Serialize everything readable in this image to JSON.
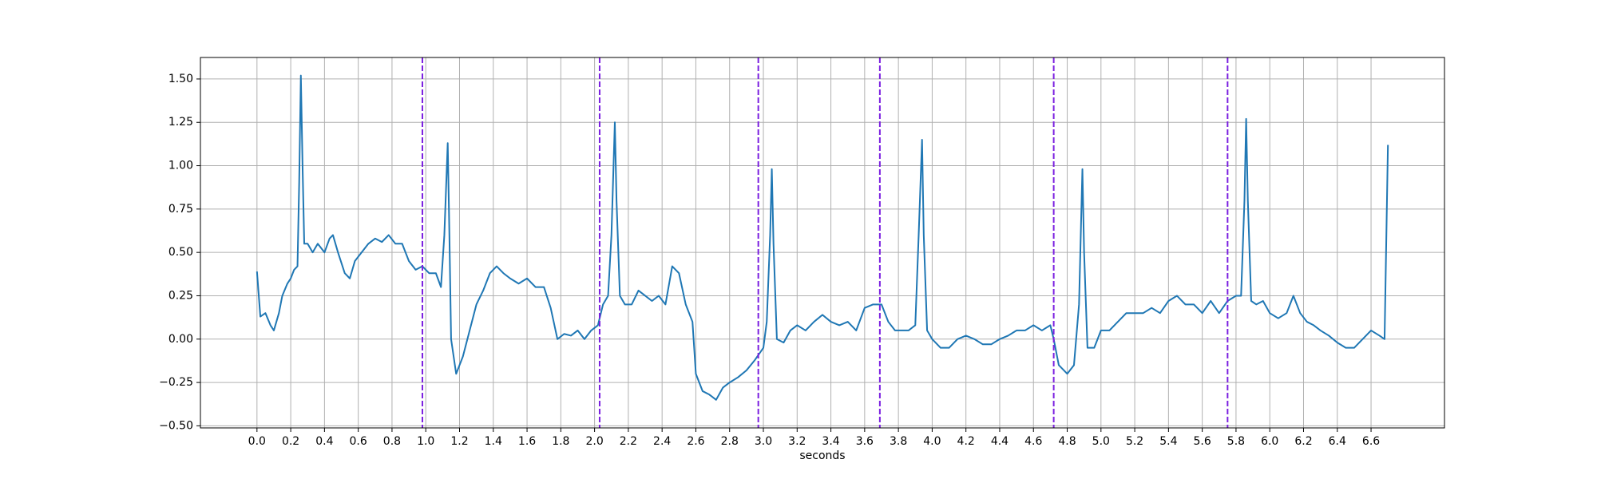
{
  "chart_data": {
    "type": "line",
    "xlabel": "seconds",
    "x": [
      0,
      0.02,
      0.05,
      0.08,
      0.1,
      0.13,
      0.15,
      0.18,
      0.2,
      0.22,
      0.24,
      0.25,
      0.26,
      0.27,
      0.28,
      0.3,
      0.33,
      0.36,
      0.4,
      0.43,
      0.45,
      0.48,
      0.52,
      0.55,
      0.58,
      0.62,
      0.66,
      0.7,
      0.74,
      0.78,
      0.82,
      0.86,
      0.9,
      0.94,
      0.98,
      1.02,
      1.06,
      1.09,
      1.11,
      1.13,
      1.14,
      1.15,
      1.18,
      1.22,
      1.26,
      1.3,
      1.34,
      1.38,
      1.42,
      1.46,
      1.5,
      1.55,
      1.6,
      1.65,
      1.7,
      1.74,
      1.78,
      1.82,
      1.86,
      1.9,
      1.94,
      1.98,
      2.02,
      2.05,
      2.08,
      2.1,
      2.12,
      2.13,
      2.15,
      2.18,
      2.22,
      2.26,
      2.3,
      2.34,
      2.38,
      2.42,
      2.46,
      2.5,
      2.54,
      2.58,
      2.6,
      2.64,
      2.68,
      2.72,
      2.76,
      2.8,
      2.85,
      2.9,
      2.95,
      3.0,
      3.02,
      3.04,
      3.05,
      3.06,
      3.08,
      3.12,
      3.16,
      3.2,
      3.25,
      3.3,
      3.35,
      3.4,
      3.45,
      3.5,
      3.55,
      3.6,
      3.65,
      3.7,
      3.74,
      3.78,
      3.82,
      3.86,
      3.9,
      3.92,
      3.94,
      3.95,
      3.97,
      4.0,
      4.05,
      4.1,
      4.15,
      4.2,
      4.25,
      4.3,
      4.35,
      4.4,
      4.45,
      4.5,
      4.55,
      4.6,
      4.65,
      4.7,
      4.72,
      4.75,
      4.8,
      4.84,
      4.87,
      4.89,
      4.9,
      4.92,
      4.96,
      5.0,
      5.05,
      5.1,
      5.15,
      5.2,
      5.25,
      5.3,
      5.35,
      5.4,
      5.45,
      5.5,
      5.55,
      5.6,
      5.65,
      5.7,
      5.75,
      5.8,
      5.83,
      5.85,
      5.86,
      5.87,
      5.89,
      5.92,
      5.96,
      6.0,
      6.05,
      6.1,
      6.14,
      6.18,
      6.22,
      6.26,
      6.3,
      6.35,
      6.4,
      6.45,
      6.5,
      6.55,
      6.6,
      6.65,
      6.68,
      6.7
    ],
    "values": [
      0.39,
      0.13,
      0.15,
      0.08,
      0.05,
      0.15,
      0.25,
      0.32,
      0.35,
      0.4,
      0.42,
      0.9,
      1.52,
      1.0,
      0.55,
      0.55,
      0.5,
      0.55,
      0.5,
      0.58,
      0.6,
      0.5,
      0.38,
      0.35,
      0.45,
      0.5,
      0.55,
      0.58,
      0.56,
      0.6,
      0.55,
      0.55,
      0.45,
      0.4,
      0.42,
      0.38,
      0.38,
      0.3,
      0.6,
      1.13,
      0.6,
      0.0,
      -0.2,
      -0.1,
      0.05,
      0.2,
      0.28,
      0.38,
      0.42,
      0.38,
      0.35,
      0.32,
      0.35,
      0.3,
      0.3,
      0.18,
      0.0,
      0.03,
      0.02,
      0.05,
      0.0,
      0.05,
      0.08,
      0.2,
      0.25,
      0.6,
      1.25,
      0.8,
      0.25,
      0.2,
      0.2,
      0.28,
      0.25,
      0.22,
      0.25,
      0.2,
      0.42,
      0.38,
      0.2,
      0.1,
      -0.2,
      -0.3,
      -0.32,
      -0.35,
      -0.28,
      -0.25,
      -0.22,
      -0.18,
      -0.12,
      -0.05,
      0.1,
      0.6,
      0.98,
      0.55,
      0.0,
      -0.02,
      0.05,
      0.08,
      0.05,
      0.1,
      0.14,
      0.1,
      0.08,
      0.1,
      0.05,
      0.18,
      0.2,
      0.2,
      0.1,
      0.05,
      0.05,
      0.05,
      0.08,
      0.6,
      1.15,
      0.6,
      0.05,
      0.0,
      -0.05,
      -0.05,
      0.0,
      0.02,
      0.0,
      -0.03,
      -0.03,
      0.0,
      0.02,
      0.05,
      0.05,
      0.08,
      0.05,
      0.08,
      0.0,
      -0.15,
      -0.2,
      -0.15,
      0.2,
      0.98,
      0.5,
      -0.05,
      -0.05,
      0.05,
      0.05,
      0.1,
      0.15,
      0.15,
      0.15,
      0.18,
      0.15,
      0.22,
      0.25,
      0.2,
      0.2,
      0.15,
      0.22,
      0.15,
      0.22,
      0.25,
      0.25,
      0.8,
      1.27,
      0.8,
      0.22,
      0.2,
      0.22,
      0.15,
      0.12,
      0.15,
      0.25,
      0.15,
      0.1,
      0.08,
      0.05,
      0.02,
      -0.02,
      -0.05,
      -0.05,
      0.0,
      0.05,
      0.02,
      0.0,
      1.12
    ],
    "color": "#1f77b4",
    "vlines": {
      "color": "#7b1fe0",
      "values": [
        0.98,
        2.03,
        2.97,
        3.69,
        4.72,
        5.75
      ]
    },
    "xlim": [
      -0.335,
      7.035
    ],
    "ylim": [
      -0.512,
      1.624
    ],
    "xticks": [
      {
        "value": 0,
        "label": "0.0"
      },
      {
        "value": 0.2,
        "label": "0.2"
      },
      {
        "value": 0.4,
        "label": "0.4"
      },
      {
        "value": 0.6,
        "label": "0.6"
      },
      {
        "value": 0.8,
        "label": "0.8"
      },
      {
        "value": 1,
        "label": "1.0"
      },
      {
        "value": 1.2,
        "label": "1.2"
      },
      {
        "value": 1.4,
        "label": "1.4"
      },
      {
        "value": 1.6,
        "label": "1.6"
      },
      {
        "value": 1.8,
        "label": "1.8"
      },
      {
        "value": 2,
        "label": "2.0"
      },
      {
        "value": 2.2,
        "label": "2.2"
      },
      {
        "value": 2.4,
        "label": "2.4"
      },
      {
        "value": 2.6,
        "label": "2.6"
      },
      {
        "value": 2.8,
        "label": "2.8"
      },
      {
        "value": 3,
        "label": "3.0"
      },
      {
        "value": 3.2,
        "label": "3.2"
      },
      {
        "value": 3.4,
        "label": "3.4"
      },
      {
        "value": 3.6,
        "label": "3.6"
      },
      {
        "value": 3.8,
        "label": "3.8"
      },
      {
        "value": 4,
        "label": "4.0"
      },
      {
        "value": 4.2,
        "label": "4.2"
      },
      {
        "value": 4.4,
        "label": "4.4"
      },
      {
        "value": 4.6,
        "label": "4.6"
      },
      {
        "value": 4.8,
        "label": "4.8"
      },
      {
        "value": 5,
        "label": "5.0"
      },
      {
        "value": 5.2,
        "label": "5.2"
      },
      {
        "value": 5.4,
        "label": "5.4"
      },
      {
        "value": 5.6,
        "label": "5.6"
      },
      {
        "value": 5.8,
        "label": "5.8"
      },
      {
        "value": 6,
        "label": "6.0"
      },
      {
        "value": 6.2,
        "label": "6.2"
      },
      {
        "value": 6.4,
        "label": "6.4"
      },
      {
        "value": 6.6,
        "label": "6.6"
      }
    ],
    "yticks": [
      {
        "value": -0.5,
        "label": "−0.50"
      },
      {
        "value": -0.25,
        "label": "−0.25"
      },
      {
        "value": 0,
        "label": "0.00"
      },
      {
        "value": 0.25,
        "label": "0.25"
      },
      {
        "value": 0.5,
        "label": "0.50"
      },
      {
        "value": 0.75,
        "label": "0.75"
      },
      {
        "value": 1,
        "label": "1.00"
      },
      {
        "value": 1.25,
        "label": "1.25"
      },
      {
        "value": 1.5,
        "label": "1.50"
      }
    ],
    "grid": true
  }
}
